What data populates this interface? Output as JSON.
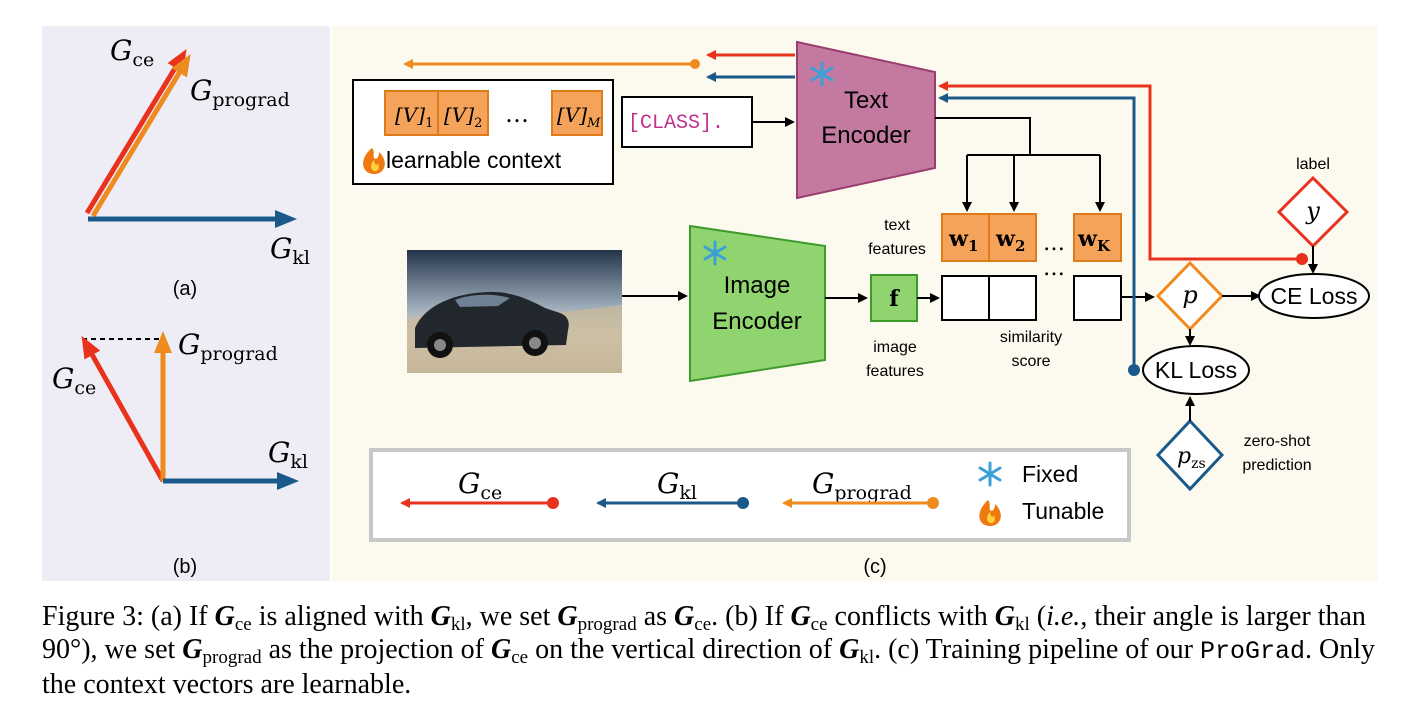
{
  "panel_a": {
    "g_ce": "ce",
    "g_prograd": "prograd",
    "g_kl": "kl",
    "label": "(a)"
  },
  "panel_b": {
    "g_ce": "ce",
    "g_prograd": "prograd",
    "g_kl": "kl",
    "label": "(b)"
  },
  "panel_c": {
    "context": {
      "v1_sub": "1",
      "v2_sub": "2",
      "vm_sub": "M",
      "ellipsis": "…",
      "label": "learnable context"
    },
    "class_token": "[CLASS].",
    "text_encoder": [
      "Text",
      "Encoder"
    ],
    "image_encoder": [
      "Image",
      "Encoder"
    ],
    "weights": {
      "w1_sub": "1",
      "w2_sub": "2",
      "wk_sub": "K",
      "ellipsis": "…"
    },
    "text_features": [
      "text",
      "features"
    ],
    "image_features": [
      "image",
      "features"
    ],
    "feature_symbol": "f",
    "similarity_score": [
      "similarity",
      "score"
    ],
    "p": "p",
    "y": "y",
    "label_caption": "label",
    "ce_loss": "CE Loss",
    "kl_loss": "KL Loss",
    "pzs_sub": "zs",
    "zero_shot": [
      "zero-shot",
      "prediction"
    ],
    "legend": {
      "g_ce": "ce",
      "g_kl": "kl",
      "g_prograd": "prograd",
      "fixed": "Fixed",
      "tunable": "Tunable"
    },
    "label": "(c)"
  },
  "caption": {
    "fig": "Figure 3: (a) If ",
    "t1": " is aligned with ",
    "t2": ", we set ",
    "t3": " as ",
    "t4": ". (b) If ",
    "t5": " conflicts with ",
    "t6": " (",
    "ie": "i.e.",
    "t7": ", their angle is larger than 90°), we set ",
    "t8": " as the projection of ",
    "t9": " on the vertical direction of ",
    "t10": ". (c) Training pipeline of our ",
    "prograd": "ProGrad",
    "t11": ". Only the context vectors are learnable.",
    "g": "G",
    "ce": "ce",
    "kl": "kl",
    "prograd_sub": "prograd"
  },
  "colors": {
    "red": "#e8321e",
    "orange": "#ee8a1e",
    "blue": "#1a5a8a",
    "panel_a_bg": "#eeedf5",
    "panel_c_bg": "#fcfaee"
  }
}
